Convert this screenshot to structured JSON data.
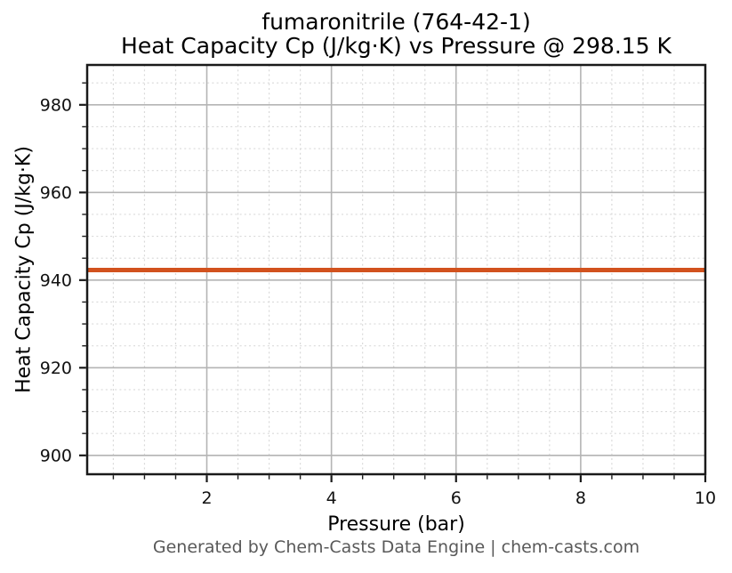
{
  "title": {
    "line1": "fumaronitrile (764-42-1)",
    "line2": "Heat Capacity Cp (J/kg·K) vs Pressure @ 298.15 K"
  },
  "footer": {
    "text": "Generated by Chem-Casts Data Engine | chem-casts.com"
  },
  "colors": {
    "line": "#d2521e",
    "grid_major": "#b4b4b4",
    "grid_minor": "#d9d9d9",
    "spine": "#1a1a1a",
    "tick": "#1a1a1a",
    "tick_label": "#111111",
    "footer_text": "#595959",
    "background": "#ffffff"
  },
  "chart_data": {
    "type": "line",
    "title_lines": [
      "fumaronitrile (764-42-1)",
      "Heat Capacity Cp (J/kg·K) vs Pressure @ 298.15 K"
    ],
    "xlabel": "Pressure (bar)",
    "ylabel": "Heat Capacity Cp (J/kg·K)",
    "substance": "fumaronitrile",
    "cas_number": "764-42-1",
    "temperature_K": 298.15,
    "xlim": [
      0.08,
      10
    ],
    "ylim": [
      895.7,
      989.1
    ],
    "x_major_ticks": [
      2,
      4,
      6,
      8,
      10
    ],
    "y_major_ticks": [
      900,
      920,
      940,
      960,
      980
    ],
    "x_minor_step": 0.5,
    "y_minor_step": 5,
    "grid": {
      "major": true,
      "minor": true
    },
    "legend": "none",
    "series": [
      {
        "color": "#d2521e",
        "style": "solid",
        "line_width": 5,
        "x": [
          0.08,
          10
        ],
        "y": [
          942.3,
          942.3
        ]
      }
    ],
    "constant_value": 942.3
  }
}
